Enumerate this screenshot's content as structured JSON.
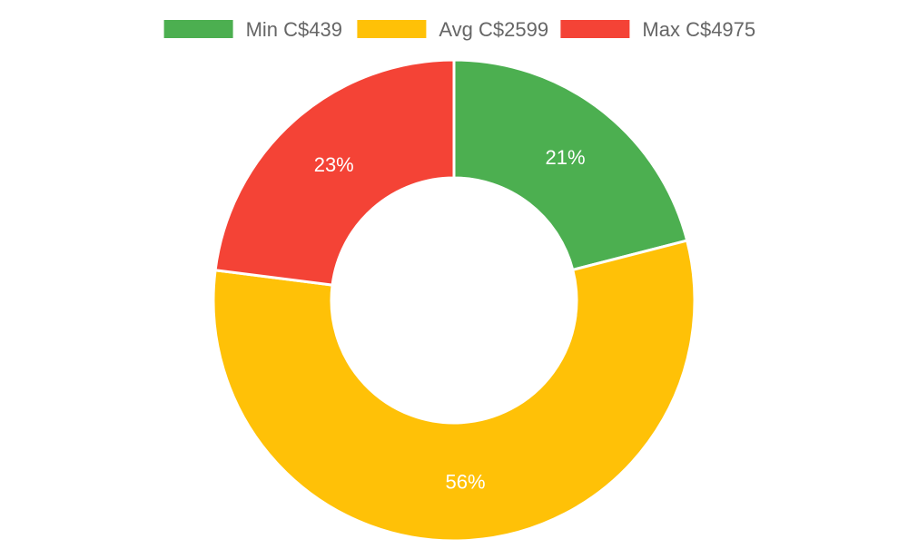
{
  "chart_data": {
    "type": "pie",
    "variant": "doughnut",
    "legend_position": "top",
    "series": [
      {
        "name": "Min C$439",
        "legend_label": "Min C$439",
        "value": 21,
        "label": "21%",
        "color": "#4caf50"
      },
      {
        "name": "Avg C$2599",
        "legend_label": "Avg C$2599",
        "value": 56,
        "label": "56%",
        "color": "#ffc107"
      },
      {
        "name": "Max C$4975",
        "legend_label": "Max C$4975",
        "value": 23,
        "label": "23%",
        "color": "#f44336"
      }
    ]
  }
}
